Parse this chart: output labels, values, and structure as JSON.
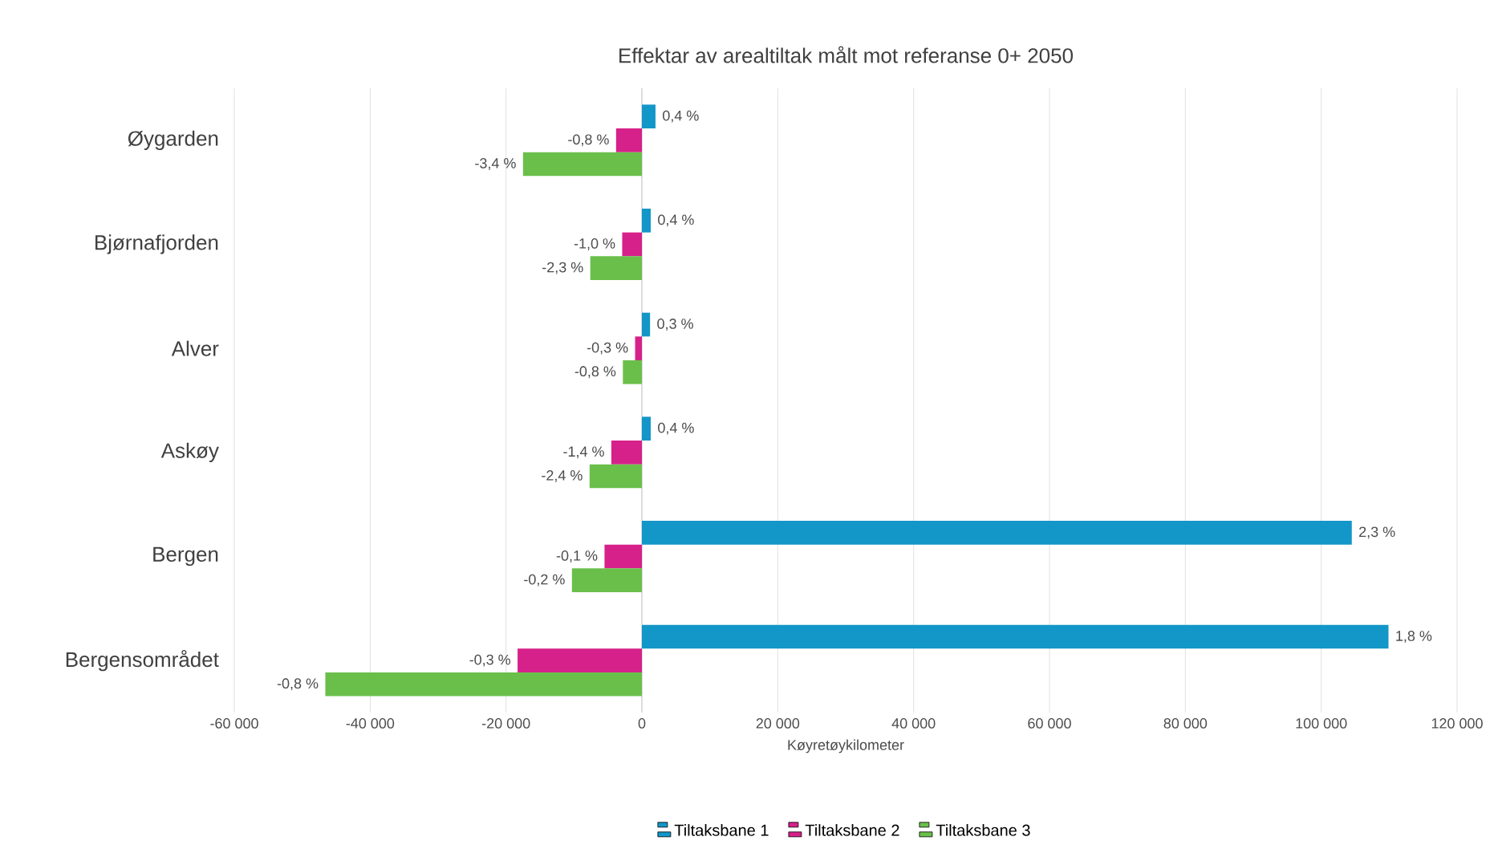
{
  "chart_data": {
    "type": "bar",
    "orientation": "horizontal",
    "title": "Effektar av arealtiltak målt mot referanse 0+ 2050",
    "xlabel": "Køyretøykilometer",
    "categories": [
      "Øygarden",
      "Bjørnafjorden",
      "Alver",
      "Askøy",
      "Bergen",
      "Bergensområdet"
    ],
    "series": [
      {
        "name": "Tiltaksbane 1",
        "color": "#1396c8",
        "values": [
          2000,
          1300,
          1200,
          1300,
          104500,
          109900
        ]
      },
      {
        "name": "Tiltaksbane 2",
        "color": "#d6218a",
        "values": [
          -3800,
          -2900,
          -1000,
          -4500,
          -5500,
          -18300
        ]
      },
      {
        "name": "Tiltaksbane 3",
        "color": "#6abf4b",
        "values": [
          -17500,
          -7600,
          -2800,
          -7700,
          -10300,
          -46600
        ]
      }
    ],
    "annotations": [
      "0,4 %",
      "-0,8 %",
      "-3,4 %",
      "0,4 %",
      "-1,0 %",
      "-2,3 %",
      "0,3 %",
      "-0,3 %",
      "-0,8 %",
      "0,4 %",
      "-1,4 %",
      "-2,4 %",
      "2,3 %",
      "-0,1 %",
      "-0,2 %",
      "1,8 %",
      "-0,3 %",
      "-0,8 %"
    ],
    "xlim": [
      -60000,
      120000
    ],
    "xticks": [
      {
        "value": -60000,
        "label": "-60 000"
      },
      {
        "value": -40000,
        "label": "-40 000"
      },
      {
        "value": -20000,
        "label": "-20 000"
      },
      0,
      {
        "value": 20000,
        "label": "20 000"
      },
      {
        "value": 40000,
        "label": "40 000"
      },
      {
        "value": 60000,
        "label": "60 000"
      },
      {
        "value": 80000,
        "label": "80 000"
      },
      {
        "value": 100000,
        "label": "100 000"
      },
      {
        "value": 120000,
        "label": "120 000"
      }
    ],
    "grid": "x",
    "legend": "bottom"
  }
}
